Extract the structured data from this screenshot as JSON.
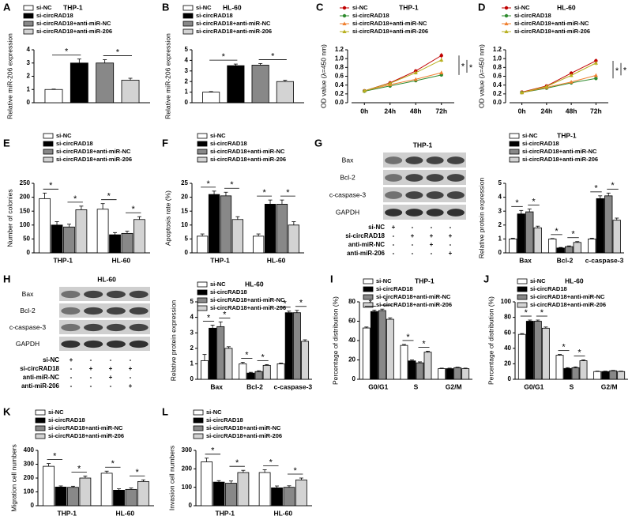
{
  "chart_data": [
    {
      "type": "bar",
      "panel": "A",
      "title": "THP-1",
      "ylabel": "Relative miR-206 expression",
      "categories": [
        null
      ],
      "ylim": [
        0,
        4
      ],
      "yticks": [
        0,
        1,
        2,
        3,
        4
      ],
      "series": [
        {
          "name": "si-NC",
          "color": "#ffffff",
          "values": [
            1.0
          ],
          "errors": [
            0.03
          ]
        },
        {
          "name": "si-circRAD18",
          "color": "#000000",
          "values": [
            3.0
          ],
          "errors": [
            0.3
          ]
        },
        {
          "name": "si-circRAD18+anti-miR-NC",
          "color": "#888888",
          "values": [
            3.0
          ],
          "errors": [
            0.25
          ]
        },
        {
          "name": "si-circRAD18+anti-miR-206",
          "color": "#d3d3d3",
          "values": [
            1.7
          ],
          "errors": [
            0.15
          ]
        }
      ],
      "stars": [
        "*",
        "*"
      ]
    },
    {
      "type": "bar",
      "panel": "B",
      "title": "HL-60",
      "ylabel": "Relative miR-206 expression",
      "categories": [
        null
      ],
      "ylim": [
        0,
        5
      ],
      "yticks": [
        0,
        1,
        2,
        3,
        4,
        5
      ],
      "series": [
        {
          "name": "si-NC",
          "color": "#ffffff",
          "values": [
            1.0
          ],
          "errors": [
            0.05
          ]
        },
        {
          "name": "si-circRAD18",
          "color": "#000000",
          "values": [
            3.5
          ],
          "errors": [
            0.15
          ]
        },
        {
          "name": "si-circRAD18+anti-miR-NC",
          "color": "#888888",
          "values": [
            3.55
          ],
          "errors": [
            0.15
          ]
        },
        {
          "name": "si-circRAD18+anti-miR-206",
          "color": "#d3d3d3",
          "values": [
            2.0
          ],
          "errors": [
            0.12
          ]
        }
      ],
      "stars": [
        "*",
        "*"
      ]
    },
    {
      "type": "line",
      "panel": "C",
      "title": "THP-1",
      "ylabel": "OD value (λ=450 nm)",
      "categories": [
        "0h",
        "24h",
        "48h",
        "72h"
      ],
      "ylim": [
        0,
        1.2
      ],
      "yticks": [
        {
          "value": 0,
          "label": "0.0"
        },
        0.2,
        0.4,
        0.6,
        0.8,
        {
          "value": 1,
          "label": "1.0"
        },
        1.2
      ],
      "series": [
        {
          "name": "si-NC",
          "color": "#c00000",
          "marker": "circle",
          "values": [
            0.27,
            0.45,
            0.72,
            1.07
          ],
          "errors": [
            0.02,
            0.03,
            0.04,
            0.06
          ]
        },
        {
          "name": "si-circRAD18",
          "color": "#2e8b2e",
          "marker": "circle",
          "values": [
            0.26,
            0.38,
            0.5,
            0.63
          ],
          "errors": [
            0.02,
            0.02,
            0.03,
            0.04
          ]
        },
        {
          "name": "si-circRAD18+anti-miR-NC",
          "color": "#f08030",
          "marker": "triangle",
          "values": [
            0.27,
            0.41,
            0.53,
            0.68
          ],
          "errors": [
            0.02,
            0.02,
            0.03,
            0.04
          ]
        },
        {
          "name": "si-circRAD18+anti-miR-206",
          "color": "#b8b020",
          "marker": "triangle",
          "values": [
            0.27,
            0.44,
            0.68,
            0.97
          ],
          "errors": [
            0.02,
            0.03,
            0.04,
            0.05
          ]
        }
      ],
      "stars": [
        "*",
        "*"
      ]
    },
    {
      "type": "line",
      "panel": "D",
      "title": "HL-60",
      "ylabel": "OD value (λ=450 nm)",
      "categories": [
        "0h",
        "24h",
        "48h",
        "72h"
      ],
      "ylim": [
        0,
        1.2
      ],
      "yticks": [
        {
          "value": 0,
          "label": "0.0"
        },
        0.2,
        0.4,
        0.6,
        0.8,
        {
          "value": 1,
          "label": "1.0"
        },
        1.2
      ],
      "series": [
        {
          "name": "si-NC",
          "color": "#c00000",
          "marker": "circle",
          "values": [
            0.24,
            0.38,
            0.67,
            0.95
          ],
          "errors": [
            0.02,
            0.03,
            0.04,
            0.05
          ]
        },
        {
          "name": "si-circRAD18",
          "color": "#2e8b2e",
          "marker": "circle",
          "values": [
            0.23,
            0.33,
            0.45,
            0.55
          ],
          "errors": [
            0.02,
            0.02,
            0.03,
            0.04
          ]
        },
        {
          "name": "si-circRAD18+anti-miR-NC",
          "color": "#f08030",
          "marker": "triangle",
          "values": [
            0.23,
            0.35,
            0.47,
            0.62
          ],
          "errors": [
            0.02,
            0.02,
            0.03,
            0.04
          ]
        },
        {
          "name": "si-circRAD18+anti-miR-206",
          "color": "#b8b020",
          "marker": "triangle",
          "values": [
            0.23,
            0.37,
            0.62,
            0.9
          ],
          "errors": [
            0.02,
            0.03,
            0.04,
            0.05
          ]
        }
      ],
      "stars": [
        "*",
        "*"
      ]
    },
    {
      "type": "bar",
      "panel": "E",
      "ylabel": "Number of colonies",
      "categories": [
        "THP-1",
        "HL-60"
      ],
      "ylim": [
        0,
        250
      ],
      "yticks": [
        0,
        50,
        100,
        150,
        200,
        250
      ],
      "series": [
        {
          "name": "si-NC",
          "color": "#ffffff",
          "values": [
            195,
            157
          ],
          "errors": [
            20,
            20
          ]
        },
        {
          "name": "si-circRAD18",
          "color": "#000000",
          "values": [
            100,
            65
          ],
          "errors": [
            12,
            8
          ]
        },
        {
          "name": "si-circRAD18+anti-miR-NC",
          "color": "#888888",
          "values": [
            93,
            70
          ],
          "errors": [
            10,
            8
          ]
        },
        {
          "name": "si-circRAD18+anti-miR-206",
          "color": "#d3d3d3",
          "values": [
            155,
            120
          ],
          "errors": [
            13,
            10
          ]
        }
      ],
      "stars": [
        "*",
        "*",
        "*",
        "*"
      ]
    },
    {
      "type": "bar",
      "panel": "F",
      "ylabel": "Apoptosis rate (%)",
      "categories": [
        "THP-1",
        "HL-60"
      ],
      "ylim": [
        0,
        25
      ],
      "yticks": [
        0,
        5,
        10,
        15,
        20,
        25
      ],
      "series": [
        {
          "name": "si-NC",
          "color": "#ffffff",
          "values": [
            6,
            6
          ],
          "errors": [
            0.8,
            0.8
          ]
        },
        {
          "name": "si-circRAD18",
          "color": "#000000",
          "values": [
            21,
            17.5
          ],
          "errors": [
            1.2,
            1.5
          ]
        },
        {
          "name": "si-circRAD18+anti-miR-NC",
          "color": "#888888",
          "values": [
            20.5,
            17.5
          ],
          "errors": [
            1.3,
            1.5
          ]
        },
        {
          "name": "si-circRAD18+anti-miR-206",
          "color": "#d3d3d3",
          "values": [
            12,
            10
          ],
          "errors": [
            1,
            1.2
          ]
        }
      ],
      "stars": [
        "*",
        "*",
        "*",
        "*"
      ]
    },
    {
      "type": "bar",
      "title": "THP-1",
      "ylabel": "Relative protein expression",
      "categories": [
        "Bax",
        "Bcl-2",
        "c-caspase-3"
      ],
      "ylim": [
        0,
        5
      ],
      "yticks": [
        0,
        1,
        2,
        3,
        4,
        5
      ],
      "series": [
        {
          "name": "si-NC",
          "color": "#ffffff",
          "values": [
            1,
            1,
            1
          ],
          "errors": [
            0.05,
            0.03,
            0.05
          ]
        },
        {
          "name": "si-circRAD18",
          "color": "#000000",
          "values": [
            2.8,
            0.35,
            3.9
          ],
          "errors": [
            0.25,
            0.04,
            0.2
          ]
        },
        {
          "name": "si-circRAD18+anti-miR-NC",
          "color": "#888888",
          "values": [
            2.95,
            0.45,
            4.1
          ],
          "errors": [
            0.2,
            0.05,
            0.2
          ]
        },
        {
          "name": "si-circRAD18+anti-miR-206",
          "color": "#d3d3d3",
          "values": [
            1.8,
            0.75,
            2.35
          ],
          "errors": [
            0.12,
            0.06,
            0.15
          ]
        }
      ],
      "stars": [
        "*",
        "*",
        "*",
        "*",
        "*",
        "*"
      ]
    },
    {
      "type": "bar",
      "title": "HL-60",
      "ylabel": "Relative protein expression",
      "categories": [
        "Bax",
        "Bcl-2",
        "c-caspase-3"
      ],
      "ylim": [
        0,
        5
      ],
      "yticks": [
        0,
        1,
        2,
        3,
        4,
        5
      ],
      "series": [
        {
          "name": "si-NC",
          "color": "#ffffff",
          "values": [
            1.2,
            1.0,
            1.0
          ],
          "errors": [
            0.4,
            0.1,
            0.05
          ]
        },
        {
          "name": "si-circRAD18",
          "color": "#000000",
          "values": [
            3.3,
            0.4,
            4.3
          ],
          "errors": [
            0.2,
            0.05,
            0.1
          ]
        },
        {
          "name": "si-circRAD18+anti-miR-NC",
          "color": "#888888",
          "values": [
            3.4,
            0.5,
            4.3
          ],
          "errors": [
            0.3,
            0.05,
            0.15
          ]
        },
        {
          "name": "si-circRAD18+anti-miR-206",
          "color": "#d3d3d3",
          "values": [
            2.0,
            0.9,
            2.45
          ],
          "errors": [
            0.1,
            0.05,
            0.1
          ]
        }
      ],
      "stars": [
        "*",
        "*",
        "*",
        "*",
        "*",
        "*"
      ]
    },
    {
      "type": "bar",
      "panel": "I",
      "title": "THP-1",
      "ylabel": "Percentage of distribution (%)",
      "categories": [
        "G0/G1",
        "S",
        "G2/M"
      ],
      "ylim": [
        0,
        80
      ],
      "yticks": [
        0,
        20,
        40,
        60,
        80
      ],
      "series": [
        {
          "name": "si-NC",
          "color": "#ffffff",
          "values": [
            53,
            35,
            11
          ],
          "errors": [
            1,
            1,
            0.5
          ]
        },
        {
          "name": "si-circRAD18",
          "color": "#000000",
          "values": [
            70,
            19,
            11
          ],
          "errors": [
            1.5,
            1,
            0.5
          ]
        },
        {
          "name": "si-circRAD18+anti-miR-NC",
          "color": "#888888",
          "values": [
            71,
            17,
            12
          ],
          "errors": [
            1.5,
            1,
            0.5
          ]
        },
        {
          "name": "si-circRAD18+anti-miR-206",
          "color": "#d3d3d3",
          "values": [
            62,
            28,
            11
          ],
          "errors": [
            1.5,
            1,
            0.5
          ]
        }
      ],
      "stars": [
        "*",
        "*",
        "*",
        "*"
      ]
    },
    {
      "type": "bar",
      "panel": "J",
      "title": "HL-60",
      "ylabel": "Percentage of distribution (%)",
      "categories": [
        "G0/G1",
        "S",
        "G2/M"
      ],
      "ylim": [
        0,
        100
      ],
      "yticks": [
        0,
        20,
        40,
        60,
        80,
        100
      ],
      "series": [
        {
          "name": "si-NC",
          "color": "#ffffff",
          "values": [
            58,
            31,
            10
          ],
          "errors": [
            1,
            1,
            0.5
          ]
        },
        {
          "name": "si-circRAD18",
          "color": "#000000",
          "values": [
            75,
            14,
            10
          ],
          "errors": [
            1.5,
            1,
            0.5
          ]
        },
        {
          "name": "si-circRAD18+anti-miR-NC",
          "color": "#888888",
          "values": [
            75,
            15,
            11
          ],
          "errors": [
            1.5,
            1,
            0.5
          ]
        },
        {
          "name": "si-circRAD18+anti-miR-206",
          "color": "#d3d3d3",
          "values": [
            66,
            24,
            10
          ],
          "errors": [
            1.5,
            1,
            0.5
          ]
        }
      ],
      "stars": [
        "*",
        "*",
        "*",
        "*"
      ]
    },
    {
      "type": "bar",
      "panel": "K",
      "ylabel": "Migration cell numbers",
      "categories": [
        "THP-1",
        "HL-60"
      ],
      "ylim": [
        0,
        400
      ],
      "yticks": [
        0,
        100,
        200,
        300,
        400
      ],
      "series": [
        {
          "name": "si-NC",
          "color": "#ffffff",
          "values": [
            285,
            235
          ],
          "errors": [
            20,
            15
          ]
        },
        {
          "name": "si-circRAD18",
          "color": "#000000",
          "values": [
            135,
            112
          ],
          "errors": [
            8,
            10
          ]
        },
        {
          "name": "si-circRAD18+anti-miR-NC",
          "color": "#888888",
          "values": [
            133,
            118
          ],
          "errors": [
            8,
            10
          ]
        },
        {
          "name": "si-circRAD18+anti-miR-206",
          "color": "#d3d3d3",
          "values": [
            200,
            175
          ],
          "errors": [
            15,
            12
          ]
        }
      ],
      "stars": [
        "*",
        "*",
        "*",
        "*"
      ]
    },
    {
      "type": "bar",
      "panel": "L",
      "ylabel": "Invasion cell numbers",
      "categories": [
        "THP-1",
        "HL-60"
      ],
      "ylim": [
        0,
        300
      ],
      "yticks": [
        0,
        100,
        200,
        300
      ],
      "series": [
        {
          "name": "si-NC",
          "color": "#ffffff",
          "values": [
            238,
            180
          ],
          "errors": [
            20,
            15
          ]
        },
        {
          "name": "si-circRAD18",
          "color": "#000000",
          "values": [
            128,
            97
          ],
          "errors": [
            8,
            10
          ]
        },
        {
          "name": "si-circRAD18+anti-miR-NC",
          "color": "#888888",
          "values": [
            122,
            100
          ],
          "errors": [
            12,
            8
          ]
        },
        {
          "name": "si-circRAD18+anti-miR-206",
          "color": "#d3d3d3",
          "values": [
            180,
            140
          ],
          "errors": [
            12,
            10
          ]
        }
      ],
      "stars": [
        "*",
        "*",
        "*",
        "*"
      ]
    }
  ],
  "blots": [
    {
      "panel": "G",
      "title": "THP-1",
      "rows": [
        "Bax",
        "Bcl-2",
        "c-caspase-3",
        "GAPDH"
      ],
      "conditions": [
        {
          "label": "si-NC",
          "signs": [
            "+",
            "-",
            "-",
            "-"
          ]
        },
        {
          "label": "si-circRAD18",
          "signs": [
            "-",
            "+",
            "+",
            "+"
          ]
        },
        {
          "label": "anti-miR-NC",
          "signs": [
            "-",
            "-",
            "+",
            "-"
          ]
        },
        {
          "label": "anti-miR-206",
          "signs": [
            "-",
            "-",
            "-",
            "+"
          ]
        }
      ]
    },
    {
      "panel": "H",
      "title": "HL-60",
      "rows": [
        "Bax",
        "Bcl-2",
        "c-caspase-3",
        "GAPDH"
      ],
      "conditions": [
        {
          "label": "si-NC",
          "signs": [
            "+",
            "-",
            "-",
            "-"
          ]
        },
        {
          "label": "si-circRAD18",
          "signs": [
            "-",
            "+",
            "+",
            "+"
          ]
        },
        {
          "label": "anti-miR-NC",
          "signs": [
            "-",
            "-",
            "+",
            "-"
          ]
        },
        {
          "label": "anti-miR-206",
          "signs": [
            "-",
            "-",
            "-",
            "+"
          ]
        }
      ]
    }
  ]
}
